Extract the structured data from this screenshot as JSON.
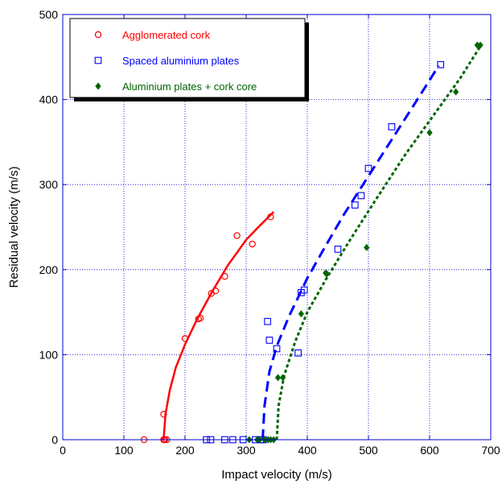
{
  "chart_data": {
    "type": "scatter",
    "xlabel": "Impact velocity (m/s)",
    "ylabel": "Residual velocity (m/s)",
    "xlim": [
      0,
      700
    ],
    "ylim": [
      0,
      500
    ],
    "xticks": [
      0,
      100,
      200,
      300,
      400,
      500,
      600,
      700
    ],
    "yticks": [
      0,
      100,
      200,
      300,
      400,
      500
    ],
    "grid": true,
    "legend_position": "top-left",
    "colors": {
      "axis": "#0000cc",
      "grid": "#0000cc"
    },
    "series": [
      {
        "name": "Agglomerated cork",
        "color": "#ff0000",
        "marker": "circle",
        "points": [
          [
            133,
            0
          ],
          [
            165,
            0
          ],
          [
            167,
            0
          ],
          [
            170,
            0
          ],
          [
            165,
            30
          ],
          [
            200,
            119
          ],
          [
            222,
            142
          ],
          [
            225,
            143
          ],
          [
            243,
            172
          ],
          [
            250,
            175
          ],
          [
            265,
            192
          ],
          [
            285,
            240
          ],
          [
            310,
            230
          ],
          [
            340,
            262
          ]
        ],
        "fit": {
          "style": "solid",
          "points": [
            [
              165,
              0
            ],
            [
              168,
              30
            ],
            [
              175,
              58
            ],
            [
              185,
              85
            ],
            [
              200,
              112
            ],
            [
              220,
              142
            ],
            [
              245,
              175
            ],
            [
              270,
              205
            ],
            [
              300,
              235
            ],
            [
              320,
              250
            ],
            [
              345,
              268
            ]
          ]
        }
      },
      {
        "name": "Spaced aluminium plates",
        "color": "#0000ff",
        "marker": "square",
        "points": [
          [
            235,
            0
          ],
          [
            242,
            0
          ],
          [
            265,
            0
          ],
          [
            278,
            0
          ],
          [
            295,
            0
          ],
          [
            315,
            0
          ],
          [
            323,
            0
          ],
          [
            328,
            0
          ],
          [
            335,
            139
          ],
          [
            338,
            117
          ],
          [
            350,
            107
          ],
          [
            385,
            102
          ],
          [
            390,
            173
          ],
          [
            395,
            176
          ],
          [
            450,
            224
          ],
          [
            478,
            276
          ],
          [
            488,
            287
          ],
          [
            500,
            319
          ],
          [
            538,
            368
          ],
          [
            618,
            441
          ]
        ],
        "fit": {
          "style": "dashed",
          "points": [
            [
              327,
              0
            ],
            [
              330,
              40
            ],
            [
              338,
              80
            ],
            [
              350,
              110
            ],
            [
              370,
              145
            ],
            [
              400,
              190
            ],
            [
              430,
              228
            ],
            [
              460,
              265
            ],
            [
              500,
              310
            ],
            [
              540,
              355
            ],
            [
              580,
              400
            ],
            [
              615,
              440
            ]
          ]
        }
      },
      {
        "name": "Aluminium plates + cork core",
        "color": "#006600",
        "marker": "diamond",
        "points": [
          [
            305,
            0
          ],
          [
            318,
            0
          ],
          [
            322,
            0
          ],
          [
            330,
            0
          ],
          [
            336,
            0
          ],
          [
            340,
            0
          ],
          [
            345,
            0
          ],
          [
            352,
            73
          ],
          [
            360,
            73
          ],
          [
            390,
            148
          ],
          [
            430,
            196
          ],
          [
            432,
            195
          ],
          [
            497,
            226
          ],
          [
            600,
            361
          ],
          [
            643,
            409
          ],
          [
            678,
            464
          ],
          [
            683,
            464
          ]
        ],
        "fit": {
          "style": "dotted",
          "points": [
            [
              350,
              0
            ],
            [
              353,
              40
            ],
            [
              362,
              75
            ],
            [
              380,
              115
            ],
            [
              400,
              150
            ],
            [
              430,
              188
            ],
            [
              470,
              235
            ],
            [
              510,
              280
            ],
            [
              560,
              335
            ],
            [
              610,
              385
            ],
            [
              650,
              425
            ],
            [
              685,
              465
            ]
          ]
        }
      }
    ]
  }
}
